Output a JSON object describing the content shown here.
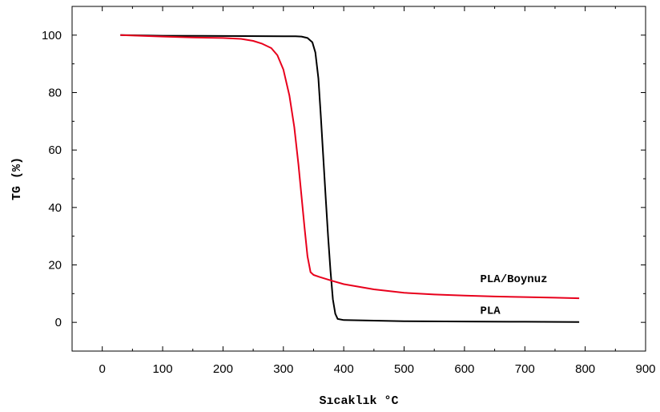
{
  "chart_data": {
    "type": "line",
    "xlabel": "Sıcaklık °C",
    "ylabel": "TG (%)",
    "xlim": [
      -50,
      900
    ],
    "ylim": [
      -10,
      110
    ],
    "x_ticks": [
      0,
      100,
      200,
      300,
      400,
      500,
      600,
      700,
      800,
      900
    ],
    "y_ticks": [
      0,
      20,
      40,
      60,
      80,
      100
    ],
    "grid": false,
    "series": [
      {
        "name": "PLA",
        "color": "#000000",
        "points": [
          [
            30,
            100
          ],
          [
            100,
            99.8
          ],
          [
            200,
            99.7
          ],
          [
            300,
            99.6
          ],
          [
            320,
            99.6
          ],
          [
            330,
            99.5
          ],
          [
            340,
            99.0
          ],
          [
            348,
            97.5
          ],
          [
            353,
            94
          ],
          [
            358,
            85
          ],
          [
            362,
            72
          ],
          [
            366,
            58
          ],
          [
            370,
            44
          ],
          [
            374,
            30
          ],
          [
            378,
            18
          ],
          [
            382,
            8
          ],
          [
            386,
            3
          ],
          [
            390,
            1.2
          ],
          [
            400,
            0.8
          ],
          [
            450,
            0.6
          ],
          [
            500,
            0.4
          ],
          [
            600,
            0.3
          ],
          [
            700,
            0.2
          ],
          [
            790,
            0.1
          ]
        ]
      },
      {
        "name": "PLA/Boynuz",
        "color": "#e8001c",
        "points": [
          [
            30,
            100
          ],
          [
            100,
            99.5
          ],
          [
            150,
            99.2
          ],
          [
            200,
            99.0
          ],
          [
            230,
            98.7
          ],
          [
            250,
            98.0
          ],
          [
            265,
            97.0
          ],
          [
            280,
            95.5
          ],
          [
            290,
            93
          ],
          [
            300,
            88
          ],
          [
            310,
            79
          ],
          [
            318,
            68
          ],
          [
            325,
            55
          ],
          [
            330,
            44
          ],
          [
            335,
            33
          ],
          [
            340,
            23
          ],
          [
            345,
            17.5
          ],
          [
            350,
            16.5
          ],
          [
            360,
            15.8
          ],
          [
            380,
            14.5
          ],
          [
            400,
            13.3
          ],
          [
            450,
            11.5
          ],
          [
            500,
            10.3
          ],
          [
            550,
            9.7
          ],
          [
            600,
            9.3
          ],
          [
            650,
            9.0
          ],
          [
            700,
            8.8
          ],
          [
            750,
            8.6
          ],
          [
            790,
            8.4
          ]
        ]
      }
    ],
    "annotations": [
      {
        "text": "PLA/Boynuz",
        "x": 626,
        "y": 14
      },
      {
        "text": "PLA",
        "x": 626,
        "y": 3
      }
    ]
  }
}
